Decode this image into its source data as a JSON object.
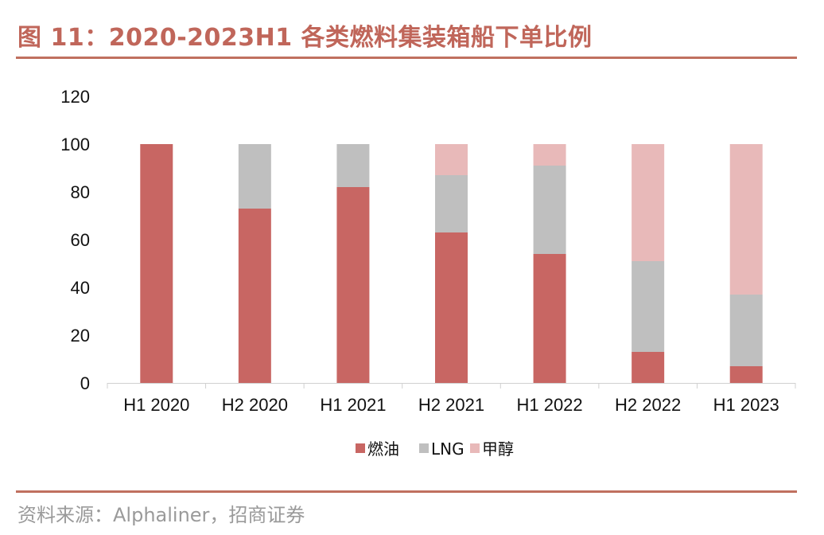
{
  "figure": {
    "title": "图 11：2020-2023H1 各类燃料集装箱船下单比例",
    "source": "资料来源：Alphaliner，招商证券"
  },
  "colors": {
    "accent": "#c0705f",
    "fuel_oil": "#c86663",
    "lng": "#bfbfbf",
    "methanol": "#e8b9b9"
  },
  "chart_data": {
    "type": "bar",
    "stacked": true,
    "title": "",
    "xlabel": "",
    "ylabel": "",
    "ylim": [
      0,
      120
    ],
    "yticks": [
      0,
      20,
      40,
      60,
      80,
      100,
      120
    ],
    "categories": [
      "H1 2020",
      "H2 2020",
      "H1 2021",
      "H2 2021",
      "H1 2022",
      "H2 2022",
      "H1 2023"
    ],
    "series": [
      {
        "name": "燃油",
        "color": "#c86663",
        "values": [
          100,
          73,
          82,
          63,
          54,
          13,
          7
        ]
      },
      {
        "name": "LNG",
        "color": "#bfbfbf",
        "values": [
          0,
          27,
          18,
          24,
          37,
          38,
          30
        ]
      },
      {
        "name": "甲醇",
        "color": "#e8b9b9",
        "values": [
          0,
          0,
          0,
          13,
          9,
          49,
          63
        ]
      }
    ],
    "grid": false,
    "legend_position": "bottom"
  }
}
